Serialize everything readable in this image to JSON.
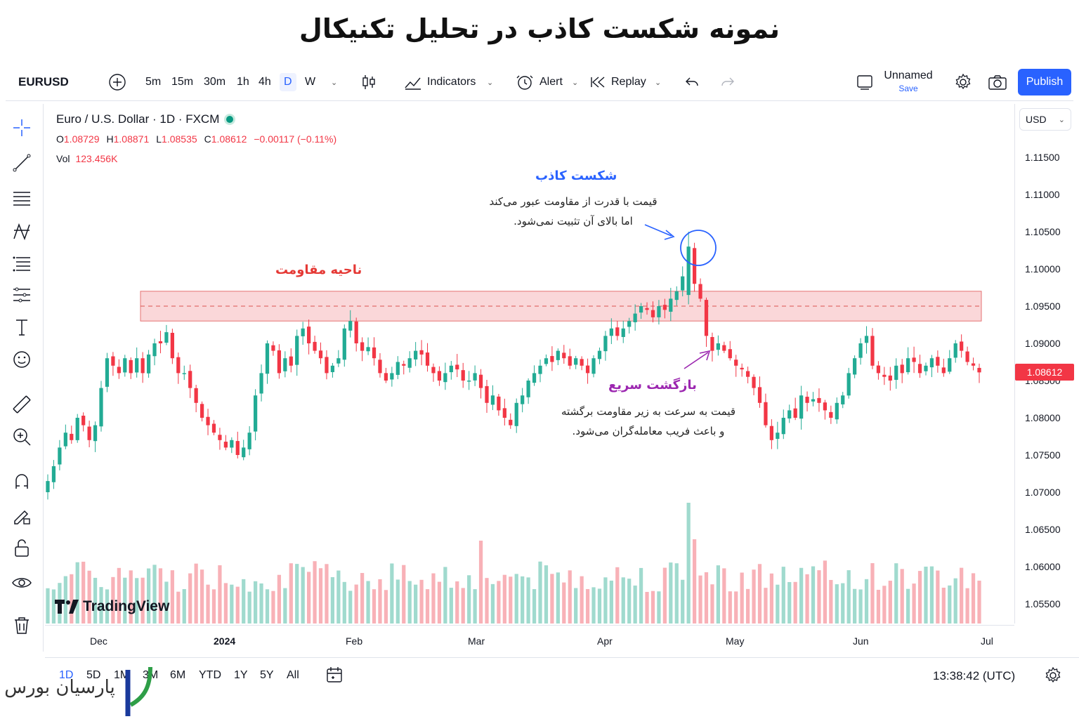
{
  "page": {
    "title": "نمونه شکست کاذب در تحلیل تکنیکال"
  },
  "toolbar": {
    "symbol": "EURUSD",
    "intervals": [
      "5m",
      "15m",
      "30m",
      "1h",
      "4h",
      "D",
      "W"
    ],
    "active_interval": "D",
    "indicators_label": "Indicators",
    "alert_label": "Alert",
    "replay_label": "Replay",
    "layout_name": "Unnamed",
    "save_label": "Save",
    "publish_label": "Publish"
  },
  "legend": {
    "title": "Euro / U.S. Dollar · 1D · FXCM",
    "open_label": "O",
    "open": "1.08729",
    "high_label": "H",
    "high": "1.08871",
    "low_label": "L",
    "low": "1.08535",
    "close_label": "C",
    "close": "1.08612",
    "change": "−0.00117 (−0.11%)",
    "vol_label": "Vol",
    "vol": "123.456K"
  },
  "currency": "USD",
  "current_price": "1.08612",
  "annotations": {
    "fake_breakout_title": "شکست کاذب",
    "fake_breakout_line1": "قیمت با قدرت از مقاومت عبور می‌کند",
    "fake_breakout_line2": "اما بالای آن تثبیت نمی‌شود.",
    "resistance_title": "ناحیه مقاومت",
    "quick_return_title": "بازگشت سریع",
    "quick_return_line1": "قیمت به سرعت به زیر مقاومت برگشته",
    "quick_return_line2": "و باعث فریب معامله‌گران می‌شود."
  },
  "colors": {
    "up": "#22ab94",
    "down": "#f23645",
    "accent": "#2962ff",
    "zone": "#f8c9cc",
    "purple": "#9c27b0",
    "blue_title": "#2962ff",
    "red_title": "#e53935"
  },
  "ranges": [
    "1D",
    "5D",
    "1M",
    "3M",
    "6M",
    "YTD",
    "1Y",
    "5Y",
    "All"
  ],
  "active_range": "1D",
  "clock": "13:38:42 (UTC)",
  "tradingview_logo": "TradingView",
  "watermark": "پارسیان بورس",
  "chart_data": {
    "type": "candlestick",
    "symbol": "EURUSD",
    "timeframe": "1D",
    "y_ticks": [
      "1.11500",
      "1.11000",
      "1.10500",
      "1.10000",
      "1.09500",
      "1.09000",
      "1.08500",
      "1.08000",
      "1.07500",
      "1.07000",
      "1.06500",
      "1.06000",
      "1.05500"
    ],
    "x_ticks": [
      "Dec",
      "2024",
      "Feb",
      "Mar",
      "Apr",
      "May",
      "Jun",
      "Jul"
    ],
    "ylim": [
      1.0515,
      1.1185
    ],
    "resistance_zone": [
      1.093,
      1.097
    ],
    "close_path": [
      1.0715,
      1.0735,
      1.076,
      1.078,
      1.077,
      1.08,
      1.079,
      1.077,
      1.079,
      1.084,
      1.088,
      1.087,
      1.086,
      1.088,
      1.086,
      1.088,
      1.086,
      1.0885,
      1.09,
      1.09,
      1.0915,
      1.088,
      1.086,
      1.086,
      1.084,
      1.082,
      1.08,
      1.079,
      1.078,
      1.077,
      1.076,
      1.077,
      1.075,
      1.076,
      1.078,
      1.083,
      1.086,
      1.09,
      1.089,
      1.086,
      1.088,
      1.087,
      1.091,
      1.092,
      1.09,
      1.089,
      1.088,
      1.086,
      1.087,
      1.088,
      1.092,
      1.093,
      1.09,
      1.089,
      1.0895,
      1.088,
      1.086,
      1.085,
      1.086,
      1.0875,
      1.087,
      1.088,
      1.089,
      1.0885,
      1.087,
      1.086,
      1.085,
      1.086,
      1.087,
      1.0865,
      1.085,
      1.085,
      1.086,
      1.084,
      1.082,
      1.083,
      1.081,
      1.08,
      1.079,
      1.082,
      1.083,
      1.085,
      1.086,
      1.087,
      1.088,
      1.0875,
      1.089,
      1.088,
      1.087,
      1.088,
      1.087,
      1.086,
      1.088,
      1.089,
      1.091,
      1.092,
      1.091,
      1.092,
      1.093,
      1.094,
      1.095,
      1.0945,
      1.0935,
      1.095,
      1.0945,
      1.096,
      1.097,
      1.099,
      1.103,
      1.098,
      1.096,
      1.091,
      1.089,
      1.09,
      1.089,
      1.088,
      1.087,
      1.0865,
      1.0855,
      1.084,
      1.082,
      1.079,
      1.077,
      1.078,
      1.08,
      1.081,
      1.08,
      1.083,
      1.082,
      1.0825,
      1.082,
      1.081,
      1.08,
      1.082,
      1.083,
      1.086,
      1.088,
      1.09,
      1.091,
      1.087,
      1.086,
      1.0855,
      1.085,
      1.087,
      1.086,
      1.088,
      1.0875,
      1.086,
      1.087,
      1.088,
      1.087,
      1.086,
      1.088,
      1.09,
      1.089,
      1.0875,
      1.087,
      1.0861
    ]
  }
}
